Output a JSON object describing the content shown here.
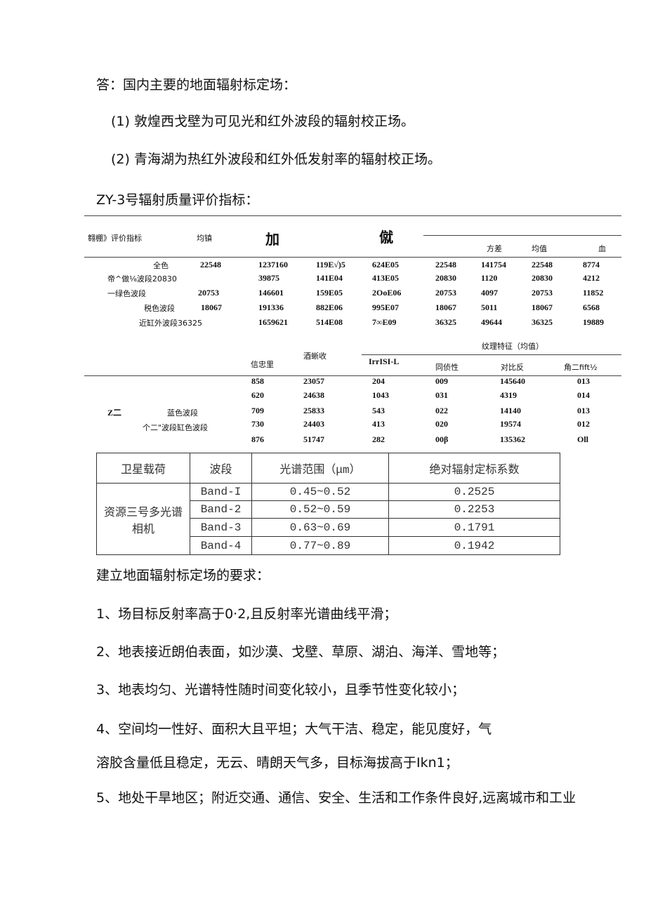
{
  "intro": {
    "answer": "答：国内主要的地面辐射标定场：",
    "item1": "(1) 敦煌西戈壁为可见光和红外波段的辐射校正场。",
    "item2": "(2) 青海湖为热红外波段和红外低发射率的辐射校正场。",
    "zy3_title": "ZY-3号辐射质量评价指标："
  },
  "table1": {
    "h_label": "翱棚》评价指标",
    "h_mean": "均镇",
    "h_big1": "加",
    "h_big2": "僦",
    "h_var": "方差",
    "h_mean2": "均值",
    "h_last": "血",
    "rows": [
      [
        "全色",
        "22548",
        "1237160",
        "119E√)5",
        "624E05",
        "22548",
        "141754",
        "22548",
        "8774"
      ],
      [
        "帝^做⅛波段20830",
        "",
        "39875",
        "141E04",
        "413E05",
        "20830",
        "1120",
        "20830",
        "4212"
      ],
      [
        "一绿色波段",
        "20753",
        "146601",
        "159E05",
        "2OoE06",
        "20753",
        "4097",
        "20753",
        "11852"
      ],
      [
        "税色波段",
        "18067",
        "191336",
        "882E06",
        "995E07",
        "18067",
        "5011",
        "18067",
        "6568"
      ],
      [
        "近缸外波段36325",
        "",
        "1659621",
        "514E08",
        "7∞E09",
        "36325",
        "49644",
        "36325",
        "19889"
      ]
    ]
  },
  "table2": {
    "h_group": "纹理特征（均值）",
    "h_c1": "信忠里",
    "h_c2": "酒蜥收",
    "h_c3": "IrrISI-L",
    "h_c4": "同侦性",
    "h_c5": "对比反",
    "h_c6": "角二fift½",
    "label_z": "Z二",
    "label_blue": "蓝色波段",
    "label_red": "个二\"波段缸色波段",
    "rows": [
      [
        "858",
        "23057",
        "204",
        "009",
        "145640",
        "013"
      ],
      [
        "620",
        "24638",
        "1043",
        "031",
        "4319",
        "014"
      ],
      [
        "709",
        "25833",
        "543",
        "022",
        "14140",
        "013"
      ],
      [
        "730",
        "24403",
        "413",
        "020",
        "19574",
        "012"
      ],
      [
        "876",
        "51747",
        "282",
        "00β",
        "135362",
        "Oll"
      ]
    ]
  },
  "table3": {
    "headers": [
      "卫星载荷",
      "波段",
      "光谱范围（μm）",
      "绝对辐射定标系数"
    ],
    "payload_line1": "资源三号多光谱",
    "payload_line2": "相机",
    "rows": [
      [
        "Band-I",
        "0.45~0.52",
        "0.2525"
      ],
      [
        "Band-2",
        "0.52~0.59",
        "0.2253"
      ],
      [
        "Band-3",
        "0.63~0.69",
        "0.1791"
      ],
      [
        "Band-4",
        "0.77~0.89",
        "0.1942"
      ]
    ]
  },
  "requirements": {
    "title": "建立地面辐射标定场的要求：",
    "r1": "1、场目标反射率高于0·2,且反射率光谱曲线平滑；",
    "r2": "2、地表接近朗伯表面，如沙漠、戈壁、草原、湖泊、海洋、雪地等；",
    "r3": "3、地表均匀、光谱特性随时间变化较小，且季节性变化较小；",
    "r4a": "4、空间均一性好、面积大且平坦；大气干洁、稳定，能见度好，气",
    "r4b": "溶胶含量低且稳定，无云、晴朗天气多，目标海拔高于Ikn1；",
    "r5": "5、地处干旱地区；附近交通、通信、安全、生活和工作条件良好,远离城市和工业"
  }
}
